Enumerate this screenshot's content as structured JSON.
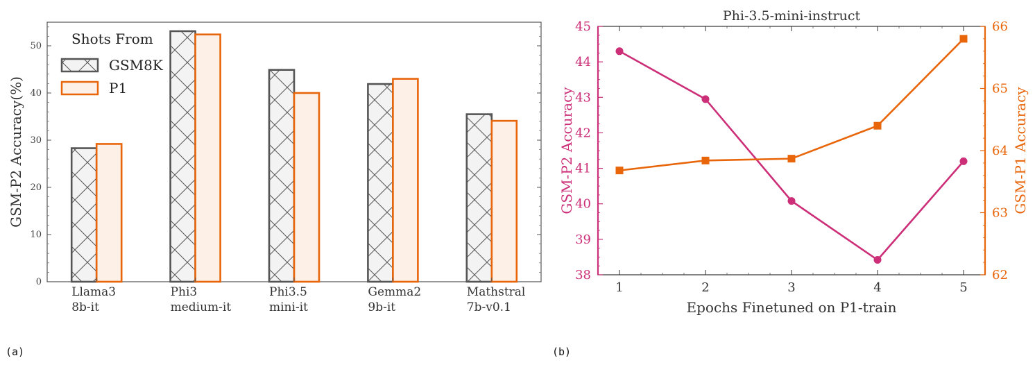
{
  "chart_data": [
    {
      "type": "bar",
      "panel_label": "(a)",
      "title": "",
      "xlabel": "",
      "ylabel": "GSM-P2 Accuracy(%)",
      "ylim": [
        0,
        55
      ],
      "yticks": [
        0,
        10,
        20,
        30,
        40,
        50
      ],
      "categories": [
        [
          "Llama3",
          "8b-it"
        ],
        [
          "Phi3",
          "medium-it"
        ],
        [
          "Phi3.5",
          "mini-it"
        ],
        [
          "Gemma2",
          "9b-it"
        ],
        [
          "Mathstral",
          "7b-v0.1"
        ]
      ],
      "legend": {
        "title": "Shots From",
        "position": "top-left"
      },
      "series": [
        {
          "name": "GSM8K",
          "values": [
            28.3,
            53.1,
            44.9,
            41.9,
            35.5
          ],
          "color": "#555555",
          "fill": "#f3f3f3",
          "hatch": "cross"
        },
        {
          "name": "P1",
          "values": [
            29.2,
            52.4,
            40.0,
            43.0,
            34.1
          ],
          "color": "#e8650a",
          "fill": "#fdf0e6"
        }
      ],
      "grid": false
    },
    {
      "type": "line",
      "panel_label": "(b)",
      "title": "Phi-3.5-mini-instruct",
      "xlabel": "Epochs Finetuned on P1-train",
      "x": [
        1,
        2,
        3,
        4,
        5
      ],
      "xlim": [
        0.75,
        5.25
      ],
      "left_axis": {
        "label": "GSM-P2 Accuracy",
        "ylim": [
          38,
          45
        ],
        "ticks": [
          38,
          39,
          40,
          41,
          42,
          43,
          44,
          45
        ],
        "color": "#cc2e78"
      },
      "right_axis": {
        "label": "GSM-P1 Accuracy",
        "ylim": [
          62,
          66
        ],
        "ticks": [
          62,
          63,
          64,
          65,
          66
        ],
        "color": "#e8650a"
      },
      "series": [
        {
          "name": "GSM-P2 Accuracy",
          "axis": "left",
          "values": [
            44.3,
            42.95,
            40.08,
            38.42,
            41.2
          ],
          "marker": "circle",
          "color": "#cc2e78"
        },
        {
          "name": "GSM-P1 Accuracy",
          "axis": "right",
          "values": [
            63.68,
            63.84,
            63.87,
            64.4,
            65.8
          ],
          "marker": "square",
          "color": "#e8650a"
        }
      ],
      "grid": false
    }
  ]
}
